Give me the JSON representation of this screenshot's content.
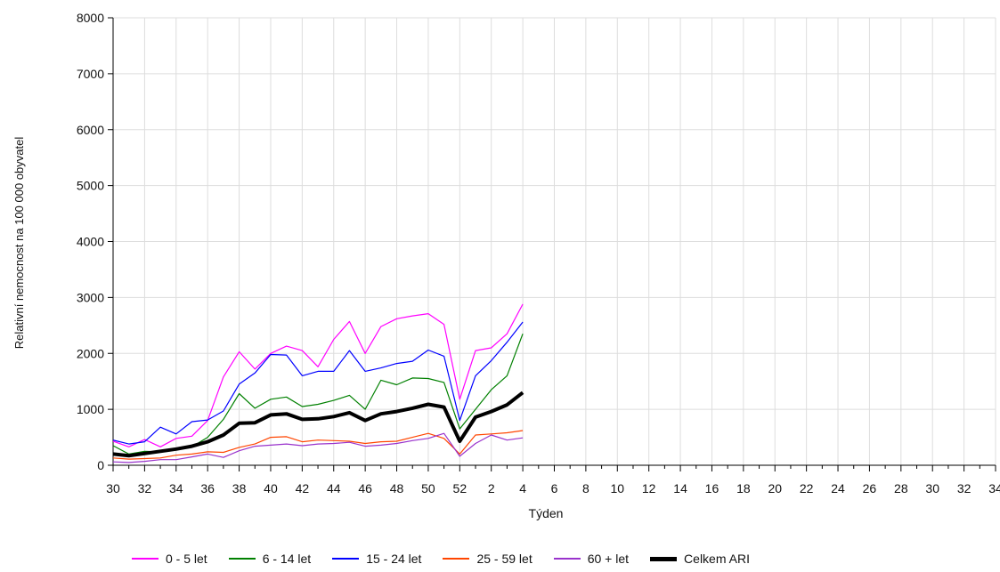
{
  "chart_data": {
    "type": "line",
    "title": "",
    "xlabel": "Týden",
    "ylabel": "Relativní nemocnost na 100 000 obyvatel",
    "ylim": [
      0,
      8000
    ],
    "yticks": [
      "0",
      "1000",
      "2000",
      "3000",
      "4000",
      "5000",
      "6000",
      "7000",
      "8000"
    ],
    "grid": true,
    "legend_position": "bottom",
    "x": [
      30,
      31,
      32,
      33,
      34,
      35,
      36,
      37,
      38,
      39,
      40,
      41,
      42,
      43,
      44,
      45,
      46,
      47,
      48,
      49,
      50,
      51,
      52,
      1,
      2,
      3,
      4
    ],
    "x_axis_weeks": [
      30,
      31,
      32,
      33,
      34,
      35,
      36,
      37,
      38,
      39,
      40,
      41,
      42,
      43,
      44,
      45,
      46,
      47,
      48,
      49,
      50,
      51,
      52,
      1,
      2,
      3,
      4,
      5,
      6,
      7,
      8,
      9,
      10,
      11,
      12,
      13,
      14,
      15,
      16,
      17,
      18,
      19,
      20,
      21,
      22,
      23,
      24,
      25,
      26,
      27,
      28,
      29,
      30,
      31,
      32,
      33,
      34
    ],
    "xtick_labels": [
      "30",
      "32",
      "34",
      "36",
      "38",
      "40",
      "42",
      "44",
      "46",
      "48",
      "50",
      "52",
      "2",
      "4",
      "6",
      "8",
      "10",
      "12",
      "14",
      "16",
      "18",
      "20",
      "22",
      "24",
      "26",
      "28",
      "30",
      "32",
      "34"
    ],
    "series": [
      {
        "name": "0 - 5 let",
        "color": "#ff00ff",
        "width": 1.2,
        "values": [
          430,
          330,
          460,
          330,
          480,
          520,
          800,
          1580,
          2030,
          1720,
          2000,
          2130,
          2050,
          1760,
          2250,
          2570,
          2000,
          2480,
          2620,
          2670,
          2710,
          2520,
          1180,
          2050,
          2100,
          2350,
          2880
        ]
      },
      {
        "name": "6 - 14 let",
        "color": "#008000",
        "width": 1.2,
        "values": [
          350,
          200,
          250,
          240,
          280,
          330,
          500,
          820,
          1280,
          1020,
          1180,
          1220,
          1050,
          1090,
          1160,
          1250,
          1000,
          1520,
          1440,
          1560,
          1550,
          1480,
          650,
          1000,
          1350,
          1600,
          2350
        ]
      },
      {
        "name": "15 - 24 let",
        "color": "#0000ff",
        "width": 1.2,
        "values": [
          450,
          380,
          420,
          680,
          560,
          780,
          810,
          970,
          1450,
          1650,
          1980,
          1970,
          1600,
          1680,
          1680,
          2050,
          1680,
          1740,
          1820,
          1860,
          2060,
          1950,
          800,
          1600,
          1870,
          2200,
          2560
        ]
      },
      {
        "name": "25 - 59 let",
        "color": "#ff4500",
        "width": 1.2,
        "values": [
          130,
          110,
          120,
          130,
          180,
          200,
          240,
          230,
          320,
          380,
          500,
          510,
          420,
          450,
          440,
          430,
          390,
          420,
          430,
          500,
          570,
          480,
          200,
          540,
          560,
          580,
          620
        ]
      },
      {
        "name": "60 + let",
        "color": "#9932cc",
        "width": 1.2,
        "values": [
          60,
          50,
          70,
          100,
          100,
          150,
          200,
          140,
          260,
          340,
          360,
          380,
          350,
          380,
          390,
          410,
          340,
          360,
          390,
          440,
          480,
          570,
          160,
          390,
          540,
          450,
          490
        ]
      },
      {
        "name": "Celkem ARI",
        "color": "#000000",
        "width": 4,
        "values": [
          200,
          170,
          210,
          250,
          290,
          340,
          420,
          540,
          750,
          760,
          900,
          920,
          820,
          830,
          870,
          940,
          800,
          920,
          960,
          1020,
          1090,
          1040,
          430,
          860,
          960,
          1080,
          1300
        ]
      }
    ]
  }
}
